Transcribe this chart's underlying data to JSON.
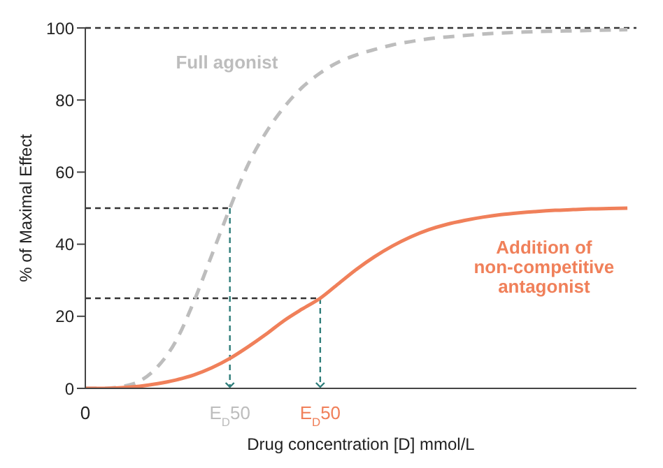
{
  "chart_data": {
    "type": "line",
    "xlabel": "Drug concentration [D] mmol/L",
    "ylabel": "% of Maximal Effect",
    "categories": [
      "0",
      null,
      null,
      null,
      null,
      null,
      null,
      null,
      "E$_{D}$50",
      null,
      null,
      null,
      null,
      "E$_{D}$50",
      null,
      null,
      null,
      null,
      null,
      null,
      null,
      null,
      null,
      null,
      null,
      null,
      null,
      null,
      null,
      null,
      null
    ],
    "ylim": [
      0,
      100
    ],
    "yticks": [
      0,
      20,
      40,
      60,
      80,
      100
    ],
    "grid": false,
    "legend": false,
    "marker": "none",
    "series": [
      {
        "name": "Full agonist",
        "color": "#bdbdbd",
        "line_style": "dashed",
        "values": [
          0,
          0,
          0.5,
          2,
          6,
          13,
          24,
          37,
          50,
          62,
          71,
          78,
          83.5,
          87.5,
          90.5,
          92.5,
          94,
          95.3,
          96.2,
          97,
          97.5,
          97.9,
          98.3,
          98.6,
          98.8,
          99,
          99.1,
          99.2,
          99.3,
          99.4,
          99.5
        ]
      },
      {
        "name": "Addition of non-competitive antagonist",
        "color": "#f0805a",
        "line_style": "solid",
        "values": [
          0,
          0,
          0.2,
          0.6,
          1.3,
          2.3,
          3.7,
          5.7,
          8.3,
          11.5,
          15,
          18.8,
          22,
          25,
          29,
          33,
          36.5,
          39.5,
          42,
          44,
          45.5,
          46.6,
          47.5,
          48.2,
          48.7,
          49.1,
          49.4,
          49.6,
          49.8,
          49.9,
          50
        ]
      }
    ],
    "ref_lines": [
      {
        "axis": "y",
        "value": 100,
        "color": "#333333",
        "line_style": "dashed"
      },
      {
        "axis": "y",
        "value": 50,
        "color": "#333333",
        "line_style": "dashed"
      },
      {
        "axis": "y",
        "value": 25,
        "color": "#333333",
        "line_style": "dashed"
      }
    ]
  }
}
